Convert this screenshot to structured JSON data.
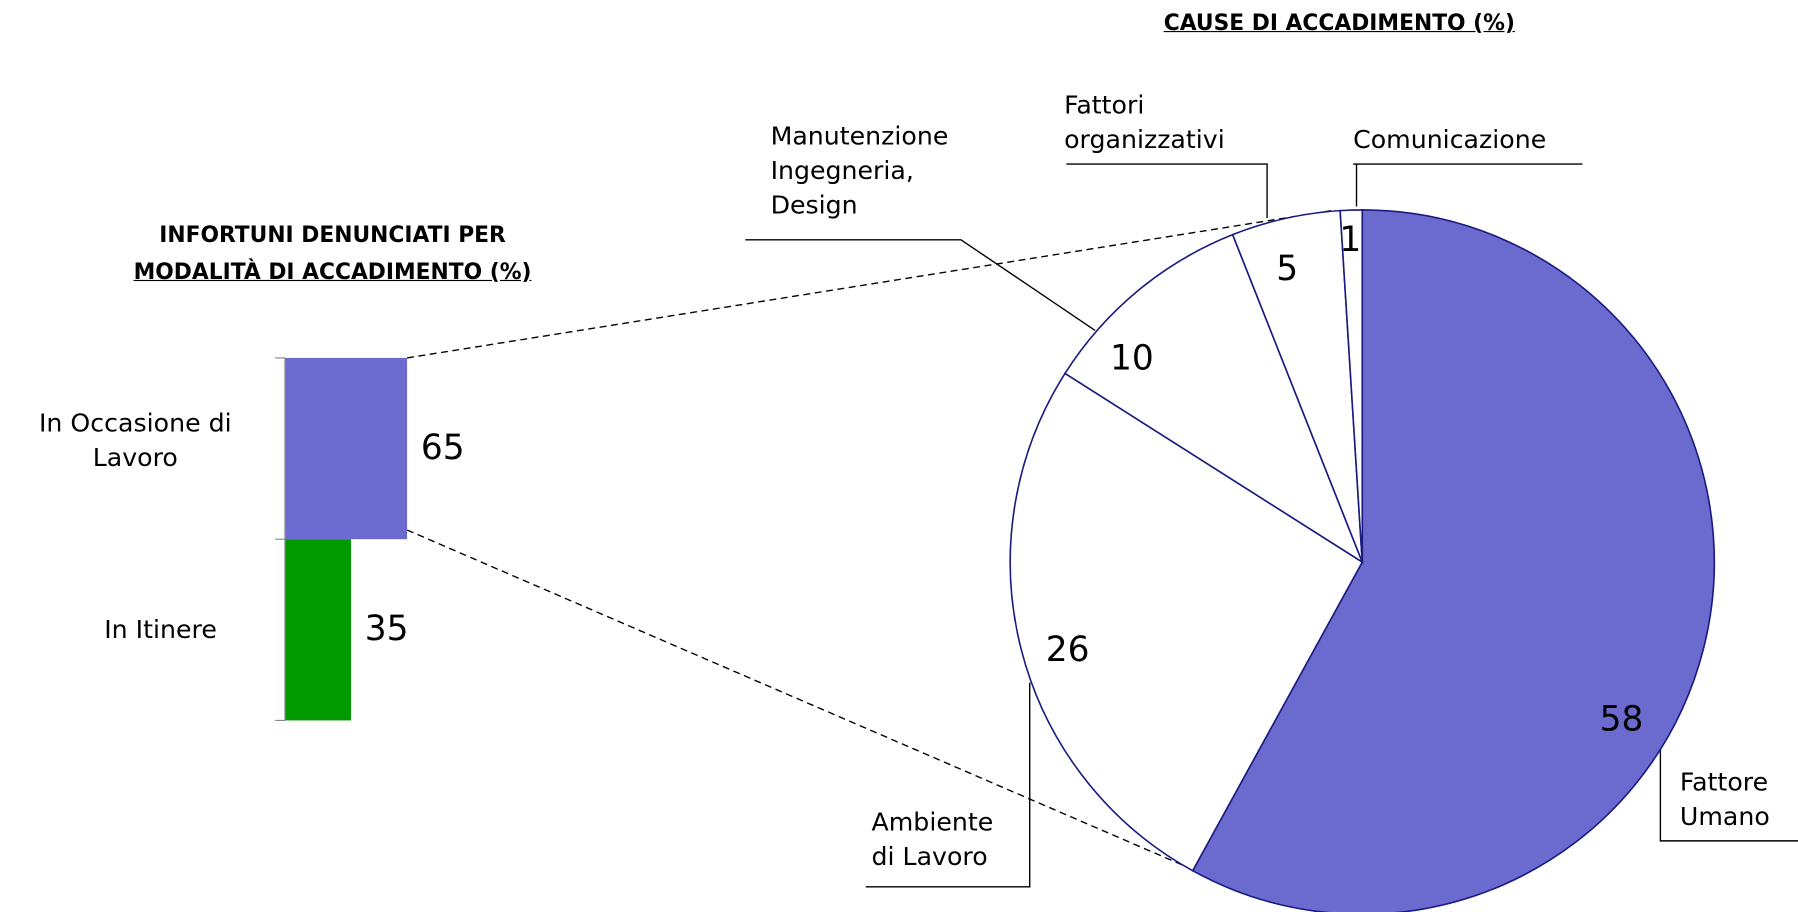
{
  "chart_data": [
    {
      "type": "bar",
      "title": [
        "INFORTUNI DENUNCIATI PER",
        "MODALITÀ DI ACCADIMENTO (%)"
      ],
      "categories": [
        "In Occasione di Lavoro",
        "In Itinere"
      ],
      "values": [
        65,
        35
      ],
      "colors": [
        "#6b6bcf",
        "#009900"
      ]
    },
    {
      "type": "pie",
      "title": "CAUSE DI ACCADIMENTO (%)",
      "categories": [
        "Fattore Umano",
        "Ambiente di Lavoro",
        "Manutenzione Ingegneria, Design",
        "Fattori organizzativi",
        "Comunicazione"
      ],
      "values": [
        58,
        26,
        10,
        5,
        1
      ],
      "colors": [
        "#6b6bcf",
        "#ffffff",
        "#ffffff",
        "#ffffff",
        "#ffffff"
      ]
    }
  ]
}
